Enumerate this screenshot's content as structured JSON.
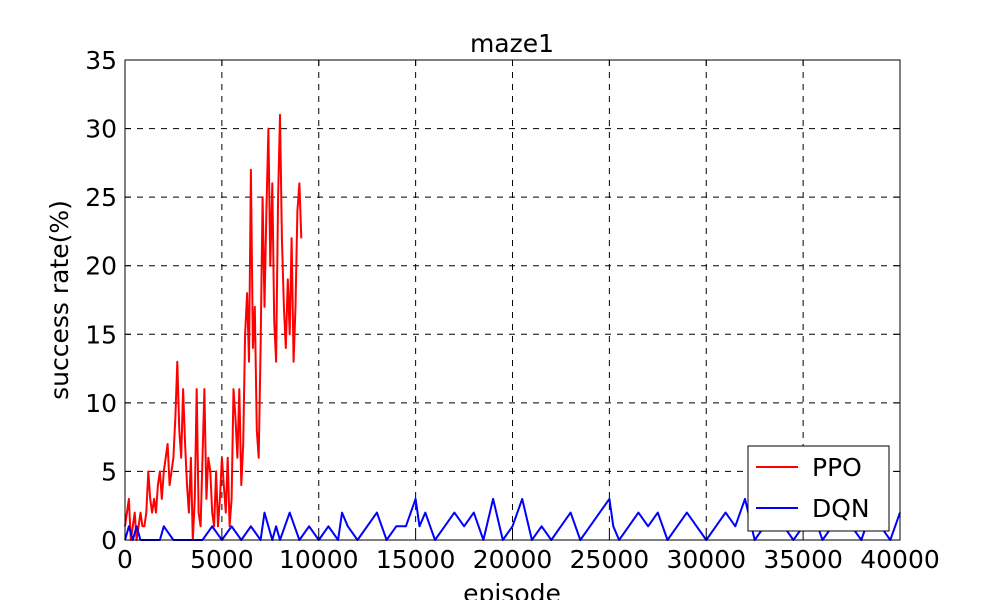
{
  "chart_data": {
    "type": "line",
    "title": "maze1",
    "xlabel": "episode",
    "ylabel": "success rate(%)",
    "xlim": [
      0,
      40000
    ],
    "ylim": [
      0,
      35
    ],
    "xticks": [
      "0",
      "5000",
      "10000",
      "15000",
      "20000",
      "25000",
      "30000",
      "35000",
      "40000"
    ],
    "yticks": [
      "0",
      "5",
      "10",
      "15",
      "20",
      "25",
      "30",
      "35"
    ],
    "grid": true,
    "legend_position": "lower-right",
    "series": [
      {
        "name": "PPO",
        "color": "#ff0000",
        "x": [
          0,
          200,
          300,
          400,
          500,
          600,
          700,
          800,
          900,
          1000,
          1100,
          1200,
          1300,
          1400,
          1500,
          1600,
          1700,
          1800,
          1900,
          2000,
          2100,
          2200,
          2300,
          2400,
          2500,
          2600,
          2700,
          2800,
          2900,
          3000,
          3100,
          3200,
          3300,
          3400,
          3500,
          3600,
          3700,
          3800,
          3900,
          4000,
          4100,
          4200,
          4300,
          4400,
          4500,
          4600,
          4700,
          4800,
          4900,
          5000,
          5100,
          5200,
          5300,
          5400,
          5500,
          5600,
          5700,
          5800,
          5900,
          6000,
          6100,
          6200,
          6300,
          6400,
          6500,
          6600,
          6700,
          6800,
          6900,
          7000,
          7100,
          7200,
          7300,
          7400,
          7500,
          7600,
          7700,
          7800,
          7900,
          8000,
          8100,
          8200,
          8300,
          8400,
          8500,
          8600,
          8700,
          8800,
          8900,
          9000,
          9100
        ],
        "y": [
          1,
          3,
          0,
          1,
          2,
          0,
          1,
          2,
          1,
          1,
          2,
          5,
          3,
          2,
          3,
          2,
          4,
          5,
          3,
          5,
          6,
          7,
          4,
          5,
          6,
          9,
          13,
          8,
          6,
          11,
          7,
          4,
          2,
          6,
          0,
          3,
          11,
          2,
          1,
          6,
          11,
          3,
          6,
          5,
          2,
          1,
          5,
          1,
          3,
          6,
          4,
          2,
          6,
          1,
          3,
          11,
          9,
          6,
          11,
          4,
          7,
          15,
          18,
          13,
          27,
          14,
          17,
          8,
          6,
          14,
          25,
          17,
          24,
          30,
          20,
          26,
          16,
          13,
          25,
          31,
          22,
          17,
          14,
          19,
          15,
          22,
          13,
          17,
          24,
          26,
          22
        ]
      },
      {
        "name": "DQN",
        "color": "#0000ff",
        "x": [
          0,
          200,
          400,
          600,
          800,
          1000,
          1200,
          1400,
          1600,
          1800,
          2000,
          2500,
          3000,
          3500,
          4000,
          4500,
          5000,
          5500,
          6000,
          6500,
          7000,
          7200,
          7400,
          7600,
          7800,
          8000,
          8500,
          9000,
          9500,
          10000,
          10500,
          11000,
          11200,
          11500,
          12000,
          12500,
          13000,
          13500,
          14000,
          14500,
          15000,
          15200,
          15500,
          16000,
          16500,
          17000,
          17500,
          18000,
          18500,
          19000,
          19500,
          20000,
          20500,
          21000,
          21500,
          22000,
          22500,
          23000,
          23500,
          24000,
          24500,
          25000,
          25200,
          25500,
          26000,
          26500,
          27000,
          27500,
          28000,
          28500,
          29000,
          29500,
          30000,
          30500,
          31000,
          31500,
          32000,
          32500,
          33000,
          33500,
          34000,
          34500,
          35000,
          35500,
          36000,
          36500,
          37000,
          37500,
          38000,
          38500,
          39000,
          39500,
          40000
        ],
        "y": [
          0,
          1,
          0,
          1,
          0,
          0,
          0,
          0,
          0,
          0,
          1,
          0,
          0,
          0,
          0,
          1,
          0,
          1,
          0,
          1,
          0,
          2,
          1,
          0,
          1,
          0,
          2,
          0,
          1,
          0,
          1,
          0,
          2,
          1,
          0,
          1,
          2,
          0,
          1,
          1,
          3,
          1,
          2,
          0,
          1,
          2,
          1,
          2,
          0,
          3,
          0,
          1,
          3,
          0,
          1,
          0,
          1,
          2,
          0,
          1,
          2,
          3,
          1,
          0,
          1,
          2,
          1,
          2,
          0,
          1,
          2,
          1,
          0,
          1,
          2,
          1,
          3,
          0,
          1,
          2,
          1,
          0,
          1,
          2,
          0,
          1,
          2,
          1,
          0,
          2,
          1,
          0,
          2
        ]
      }
    ]
  }
}
